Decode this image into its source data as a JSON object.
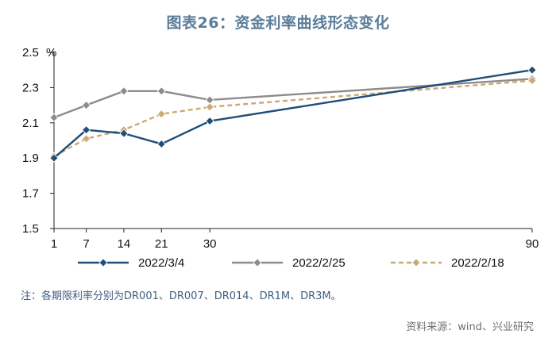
{
  "title": "图表26：资金利率曲线形态变化",
  "note": "注：各期限利率分别为DR001、DR007、DR014、DR1M、DR3M。",
  "source": "资料来源：wind、兴业研究",
  "colors": {
    "series_2022_3_4": "#1f4e79",
    "series_2022_2_25": "#8c8c8c",
    "series_2022_2_18": "#c9aa72",
    "axis": "#222222"
  },
  "chart_data": {
    "type": "line",
    "title": "图表26：资金利率曲线形态变化",
    "unit_label": "%",
    "xlabel": "",
    "ylabel": "%",
    "x_ticks": [
      1,
      7,
      14,
      21,
      30,
      90
    ],
    "x_tick_labels": [
      "1",
      "7",
      "14",
      "21",
      "30",
      "90"
    ],
    "y_ticks": [
      1.5,
      1.7,
      1.9,
      2.1,
      2.3,
      2.5
    ],
    "y_tick_labels": [
      "1.5",
      "1.7",
      "1.9",
      "2.1",
      "2.3",
      "2.5"
    ],
    "ylim": [
      1.5,
      2.5
    ],
    "xlim": [
      1,
      90
    ],
    "grid": false,
    "legend_position": "bottom",
    "series": [
      {
        "name": "2022/3/4",
        "style": "solid",
        "marker": "diamond-filled",
        "color": "#1f4e79",
        "x": [
          1,
          7,
          14,
          21,
          30,
          90
        ],
        "values": [
          1.9,
          2.06,
          2.04,
          1.98,
          2.11,
          2.4
        ]
      },
      {
        "name": "2022/2/25",
        "style": "solid",
        "marker": "diamond-filled",
        "color": "#8c8c8c",
        "x": [
          1,
          7,
          14,
          21,
          30,
          90
        ],
        "values": [
          2.13,
          2.2,
          2.28,
          2.28,
          2.23,
          2.35
        ]
      },
      {
        "name": "2022/2/18",
        "style": "dashed",
        "marker": "diamond-filled",
        "color": "#c9aa72",
        "x": [
          1,
          7,
          14,
          21,
          30,
          90
        ],
        "values": [
          1.91,
          2.01,
          2.06,
          2.15,
          2.19,
          2.34
        ]
      }
    ]
  }
}
